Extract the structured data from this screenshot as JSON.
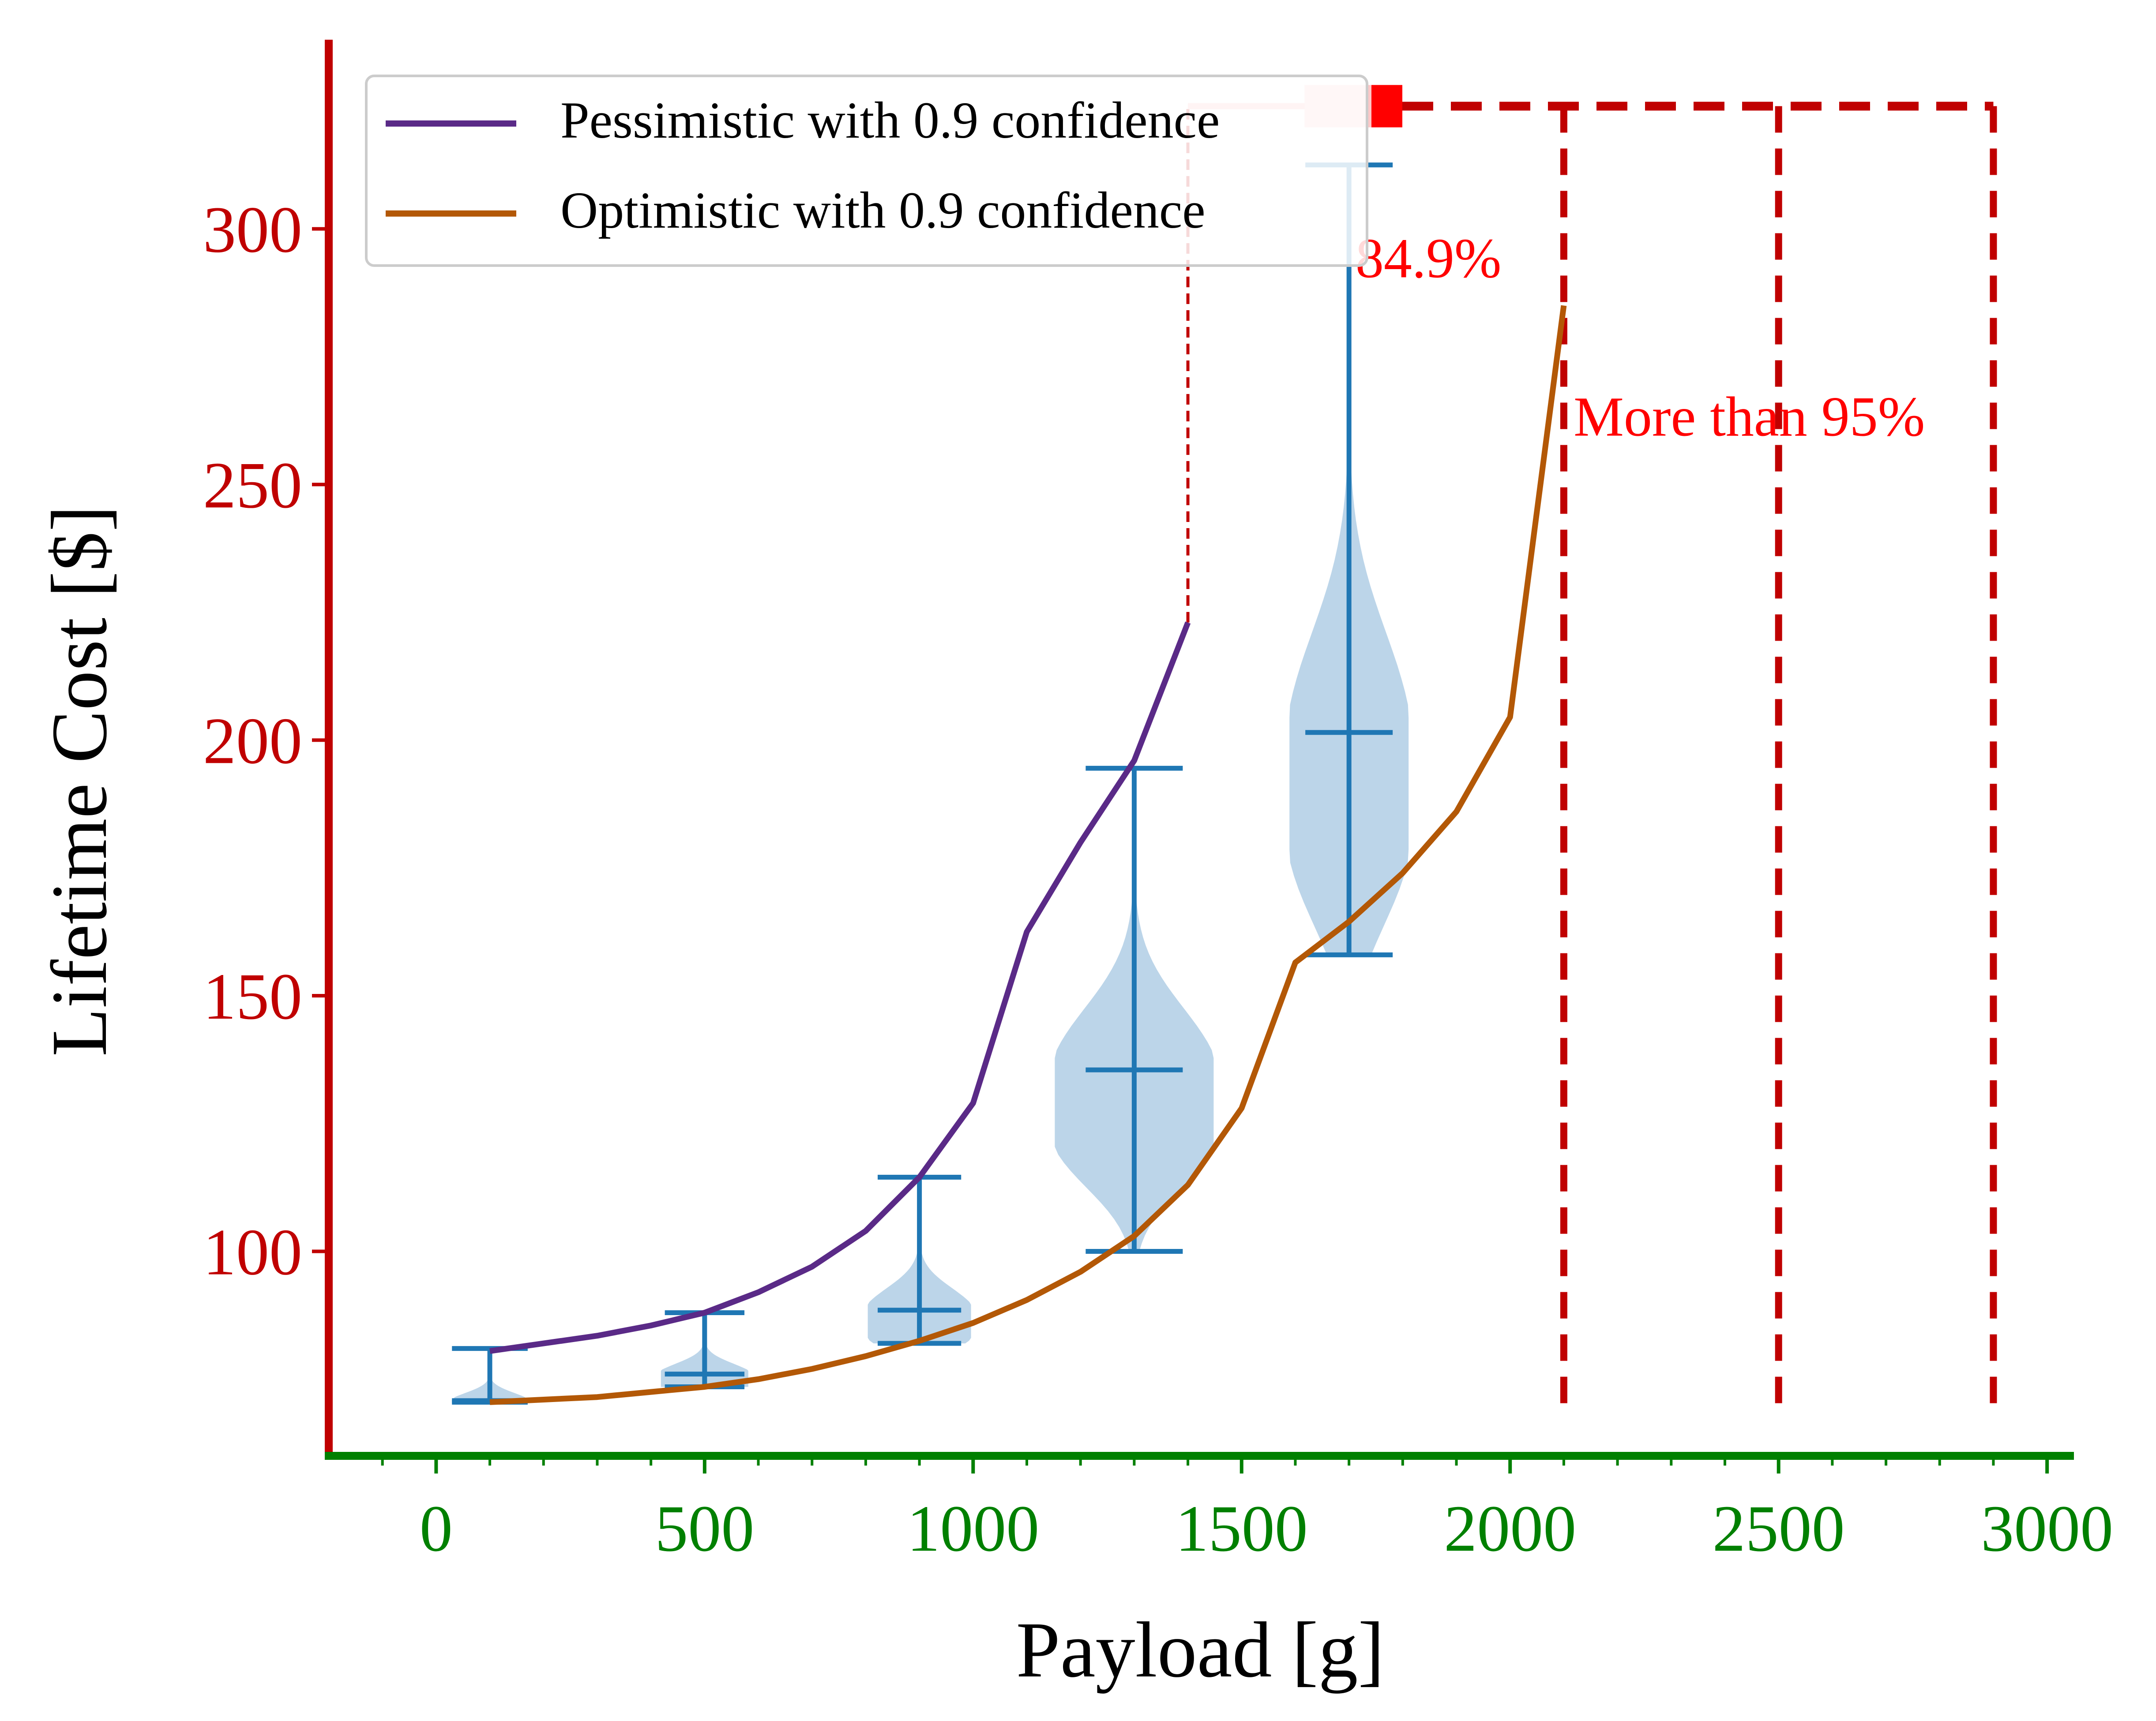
{
  "chart_data": {
    "type": "line",
    "title": "",
    "xlabel": "Payload [g]",
    "ylabel": "Lifetime Cost [$]",
    "xlim": [
      -200,
      3050
    ],
    "ylim": [
      60,
      337
    ],
    "xticks": [
      0,
      500,
      1000,
      1500,
      2000,
      2500,
      3000
    ],
    "xtick_labels": [
      "0",
      "500",
      "1000",
      "1500",
      "2000",
      "2500",
      "3000"
    ],
    "yticks": [
      100,
      150,
      200,
      250,
      300
    ],
    "ytick_labels": [
      "100",
      "150",
      "200",
      "250",
      "300"
    ],
    "grid": false,
    "legend_position": "top-left",
    "series": [
      {
        "name": "Pessimistic with 0.9 confidence",
        "color": "#5a2a87",
        "x": [
          100,
          200,
          300,
          400,
          500,
          600,
          700,
          800,
          900,
          1000,
          1100,
          1200,
          1300,
          1400
        ],
        "y": [
          80.5,
          82,
          83.5,
          85.5,
          88,
          92,
          97,
          104,
          114.5,
          129,
          162.5,
          180,
          196,
          223
        ]
      },
      {
        "name": "Optimistic with 0.9 confidence",
        "color": "#b35806",
        "x": [
          100,
          200,
          300,
          400,
          500,
          600,
          700,
          800,
          900,
          1000,
          1100,
          1200,
          1300,
          1400,
          1500,
          1600,
          1700,
          1800,
          1900,
          2000,
          2100
        ],
        "y": [
          70.5,
          71,
          71.5,
          72.5,
          73.5,
          75,
          77,
          79.5,
          82.5,
          86,
          90.5,
          96,
          103,
          113,
          128,
          156.5,
          164.5,
          174,
          186,
          204.5,
          285
        ]
      }
    ],
    "violins": {
      "color": "#1f77b4",
      "fill": "#b8d3e8",
      "items": [
        {
          "x": 100,
          "min": 70.5,
          "median": 70.8,
          "max": 81,
          "width_scale": 0.45
        },
        {
          "x": 500,
          "min": 73.5,
          "median": 76,
          "max": 88,
          "width_scale": 0.55
        },
        {
          "x": 900,
          "min": 82,
          "median": 88.5,
          "max": 114.5,
          "width_scale": 0.65
        },
        {
          "x": 1300,
          "min": 100,
          "median": 135.5,
          "max": 194.5,
          "width_scale": 1.0
        },
        {
          "x": 1700,
          "min": 158,
          "median": 201.5,
          "max": 312.5,
          "width_scale": 0.75
        }
      ]
    },
    "failure_lines": {
      "color": "#c00000",
      "top_y": 324,
      "bottom_y": 70,
      "thin_line": {
        "x": 1400,
        "y_from": 223,
        "y_to": 324
      },
      "thick_lines_x": [
        2100,
        2500,
        2900
      ],
      "marker_x": [
        1650,
        1750
      ]
    },
    "annotations": [
      {
        "text": "84.9%",
        "x": 1700,
        "y": 294,
        "color": "#ff0000"
      },
      {
        "text": "More than 95%",
        "x": 2110,
        "y": 263,
        "color": "#ff0000"
      }
    ],
    "axis_colors": {
      "x": "#008000",
      "y": "#c00000"
    }
  }
}
